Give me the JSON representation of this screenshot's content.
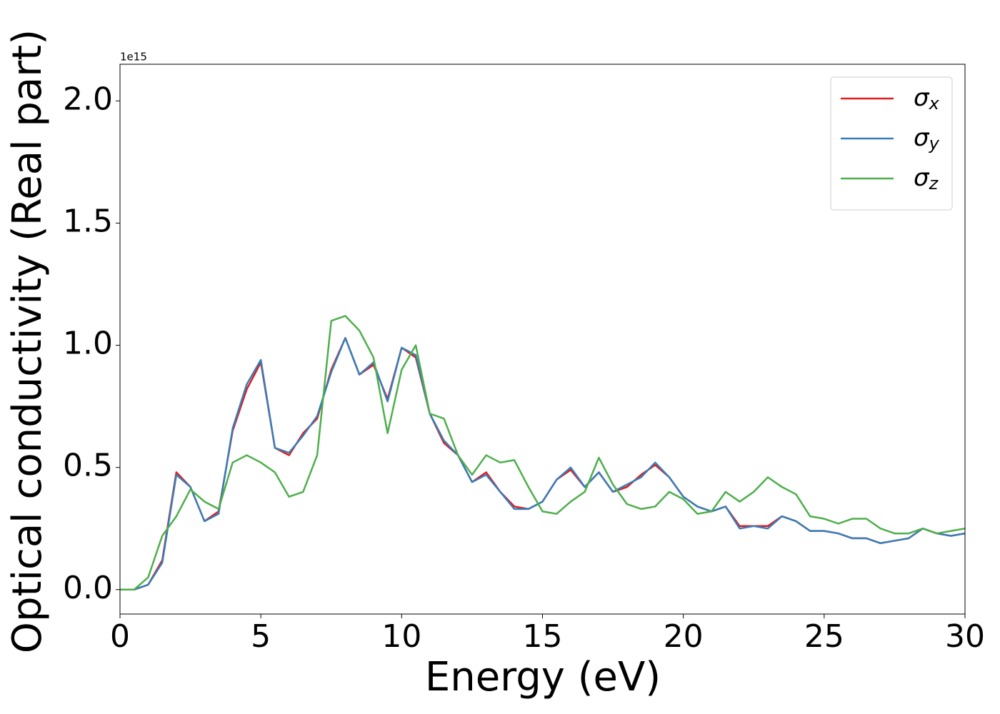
{
  "chart_data": {
    "type": "line",
    "x_label": "Energy (eV)",
    "y_label": "Optical conductivity (Real part)",
    "y_offset_label": "1e15",
    "xlim": [
      0,
      30
    ],
    "ylim": [
      -0.1,
      2.15
    ],
    "xticks": [
      0,
      5,
      10,
      15,
      20,
      25,
      30
    ],
    "yticks": [
      {
        "value": 0,
        "label": "0.0"
      },
      {
        "value": 0.5,
        "label": "0.5"
      },
      {
        "value": 1.0,
        "label": "1.0"
      },
      {
        "value": 1.5,
        "label": "1.5"
      },
      {
        "value": 2.0,
        "label": "2.0"
      }
    ],
    "legend": "upper right",
    "x": [
      0,
      0.5,
      1,
      1.5,
      2,
      2.5,
      3,
      3.5,
      4,
      4.5,
      5,
      5.5,
      6,
      6.5,
      7,
      7.5,
      8,
      8.5,
      9,
      9.5,
      10,
      10.5,
      11,
      11.5,
      12,
      12.5,
      13,
      13.5,
      14,
      14.5,
      15,
      15.5,
      16,
      16.5,
      17,
      17.5,
      18,
      18.5,
      19,
      19.5,
      20,
      20.5,
      21,
      21.5,
      22,
      22.5,
      23,
      23.5,
      24,
      24.5,
      25,
      25.5,
      26,
      26.5,
      27,
      27.5,
      28,
      28.5,
      29,
      29.5,
      30
    ],
    "series": [
      {
        "name": "σx",
        "color": "#e41a1c",
        "values": [
          0,
          0.0,
          0.02,
          0.12,
          0.48,
          0.42,
          0.28,
          0.32,
          0.65,
          0.82,
          0.93,
          0.58,
          0.55,
          0.64,
          0.7,
          0.9,
          1.03,
          0.88,
          0.92,
          0.78,
          0.99,
          0.95,
          0.72,
          0.6,
          0.55,
          0.44,
          0.48,
          0.4,
          0.34,
          0.33,
          0.36,
          0.45,
          0.49,
          0.42,
          0.48,
          0.4,
          0.42,
          0.47,
          0.51,
          0.46,
          0.38,
          0.34,
          0.32,
          0.34,
          0.26,
          0.26,
          0.26,
          0.3,
          0.28,
          0.24,
          0.24,
          0.23,
          0.21,
          0.21,
          0.19,
          0.2,
          0.21,
          0.25,
          0.23,
          0.22,
          0.23
        ]
      },
      {
        "name": "σy",
        "color": "#377eb8",
        "values": [
          0,
          0.0,
          0.02,
          0.11,
          0.47,
          0.42,
          0.28,
          0.31,
          0.66,
          0.84,
          0.94,
          0.58,
          0.56,
          0.63,
          0.71,
          0.89,
          1.03,
          0.88,
          0.93,
          0.77,
          0.99,
          0.96,
          0.72,
          0.61,
          0.55,
          0.44,
          0.47,
          0.4,
          0.33,
          0.33,
          0.36,
          0.45,
          0.5,
          0.42,
          0.48,
          0.4,
          0.43,
          0.46,
          0.52,
          0.46,
          0.38,
          0.34,
          0.32,
          0.34,
          0.25,
          0.26,
          0.25,
          0.3,
          0.28,
          0.24,
          0.24,
          0.23,
          0.21,
          0.21,
          0.19,
          0.2,
          0.21,
          0.25,
          0.23,
          0.22,
          0.23
        ]
      },
      {
        "name": "σz",
        "color": "#4daf4a",
        "values": [
          0,
          0.0,
          0.05,
          0.22,
          0.3,
          0.41,
          0.36,
          0.33,
          0.52,
          0.55,
          0.52,
          0.48,
          0.38,
          0.4,
          0.55,
          1.1,
          1.12,
          1.06,
          0.95,
          0.64,
          0.9,
          1.0,
          0.72,
          0.7,
          0.55,
          0.47,
          0.55,
          0.52,
          0.53,
          0.42,
          0.32,
          0.31,
          0.36,
          0.4,
          0.54,
          0.43,
          0.35,
          0.33,
          0.34,
          0.4,
          0.37,
          0.31,
          0.32,
          0.4,
          0.36,
          0.4,
          0.46,
          0.42,
          0.39,
          0.3,
          0.29,
          0.27,
          0.29,
          0.29,
          0.25,
          0.23,
          0.23,
          0.25,
          0.23,
          0.24,
          0.25
        ]
      }
    ]
  }
}
